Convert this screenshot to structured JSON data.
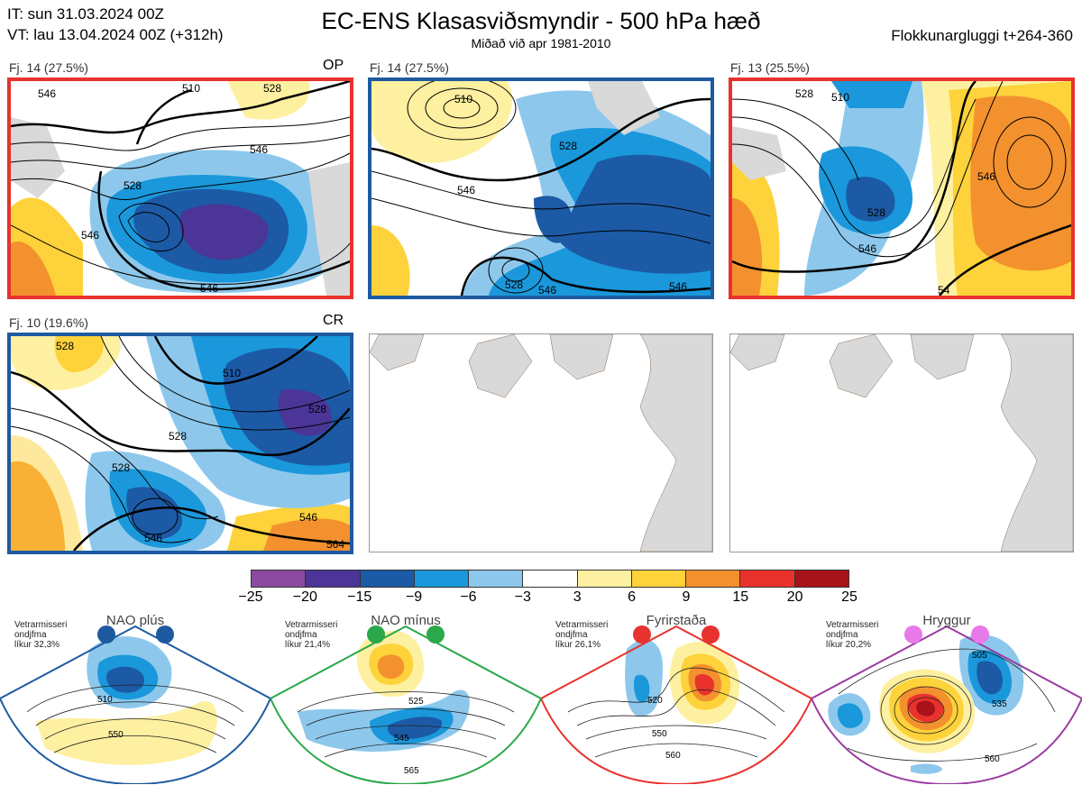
{
  "header": {
    "it_line": "IT: sun 31.03.2024 00Z",
    "vt_line": "VT: lau 13.04.2024 00Z  (+312h)",
    "title": "EC-ENS Klasasviðsmyndir - 500 hPa hæð",
    "subtitle": "Miðað við apr 1981-2010",
    "window": "Flokkunargluggi t+264-360"
  },
  "panels": [
    {
      "label": "Fj. 14 (27.5%)",
      "tag": "OP",
      "border_color": "#e8322e",
      "contours": [
        "546",
        "510",
        "528",
        "546",
        "528",
        "546",
        "546"
      ]
    },
    {
      "label": "Fj. 14 (27.5%)",
      "tag": "",
      "border_color": "#1e5aa0",
      "contours": [
        "510",
        "528",
        "546",
        "528",
        "546",
        "546"
      ]
    },
    {
      "label": "Fj. 13 (25.5%)",
      "tag": "",
      "border_color": "#e8322e",
      "contours": [
        "528",
        "510",
        "528",
        "546",
        "546",
        "54"
      ]
    },
    {
      "label": "Fj. 10 (19.6%)",
      "tag": "CR",
      "border_color": "#1e5aa0",
      "contours": [
        "528",
        "510",
        "528",
        "528",
        "528",
        "546",
        "546",
        "564"
      ]
    }
  ],
  "colorbar": {
    "colors": [
      "#8b4aa0",
      "#4b3597",
      "#1c5aa6",
      "#1a98db",
      "#8dc8ec",
      "#ffffff",
      "#fdf0a0",
      "#fdd23a",
      "#f3912e",
      "#e9322c",
      "#a8121a"
    ],
    "ticks": [
      "−25",
      "−20",
      "−15",
      "−9",
      "−6",
      "−3",
      "3",
      "6",
      "9",
      "15",
      "20",
      "25"
    ]
  },
  "regimes": [
    {
      "name": "NAO plús",
      "stats": [
        "Vetrarmisseri",
        "ondjfma",
        "líkur 32,3%"
      ],
      "color": "#1e5aa0",
      "contours": [
        "510",
        "550"
      ]
    },
    {
      "name": "NAO mínus",
      "stats": [
        "Vetrarmisseri",
        "ondjfma",
        "líkur 21,4%"
      ],
      "color": "#2aa84a",
      "contours": [
        "525",
        "545",
        "565"
      ]
    },
    {
      "name": "Fyrirstaða",
      "stats": [
        "Vetrarmisseri",
        "ondjfma",
        "líkur 26,1%"
      ],
      "color": "#e8322e",
      "contours": [
        "520",
        "550",
        "560"
      ]
    },
    {
      "name": "Hryggur",
      "stats": [
        "Vetrarmisseri",
        "ondjfma",
        "líkur 20,2%"
      ],
      "color": "#9a3aa0",
      "contours": [
        "505",
        "535",
        "560"
      ]
    }
  ]
}
